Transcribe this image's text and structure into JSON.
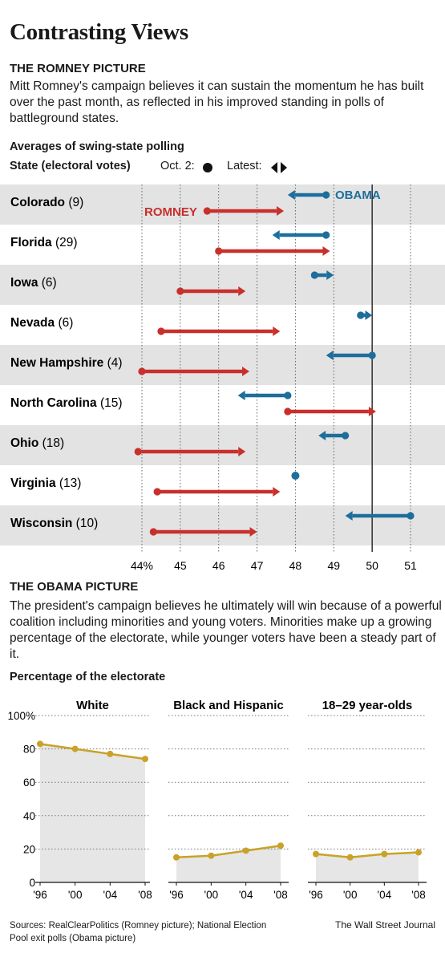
{
  "title": "Contrasting Views",
  "romney": {
    "heading": "THE ROMNEY PICTURE",
    "description": "Mitt Romney's campaign believes it can sustain the momentum he has built over the past month, as reflected in his improved standing in polls of battleground states.",
    "subheading": "Averages of swing-state polling",
    "state_header": "State (electoral votes)",
    "legend_oct2": "Oct. 2:",
    "legend_latest": "Latest:",
    "obama_label": "OBAMA",
    "romney_label": "ROMNEY"
  },
  "obama": {
    "heading": "THE OBAMA PICTURE",
    "description": "The president's campaign believes he ultimately will win because of a powerful coalition including minorities and young voters. Minorities make up a growing percentage of the electorate, while younger voters have been a steady part of it.",
    "subheading": "Percentage of the electorate"
  },
  "sources": "Sources: RealClearPolitics (Romney picture); National Election Pool exit polls (Obama picture)",
  "credit": "The Wall Street Journal",
  "colors": {
    "obama": "#1d6e9c",
    "romney": "#c8302c",
    "line": "#c9a227",
    "band": "#e3e3e3",
    "area": "#e6e6e6"
  },
  "chart_data": [
    {
      "type": "dumbbell",
      "xlim": [
        44,
        51
      ],
      "x_ticks": [
        44,
        45,
        46,
        47,
        48,
        49,
        50,
        51
      ],
      "x_tick_labels": [
        "44%",
        "45",
        "46",
        "47",
        "48",
        "49",
        "50",
        "51"
      ],
      "reference_line": 50,
      "states": [
        {
          "name": "Colorado",
          "ev": "(9)",
          "obama_oct2": 48.8,
          "obama_latest": 47.8,
          "romney_oct2": 45.7,
          "romney_latest": 47.7
        },
        {
          "name": "Florida",
          "ev": "(29)",
          "obama_oct2": 48.8,
          "obama_latest": 47.4,
          "romney_oct2": 46.0,
          "romney_latest": 48.9
        },
        {
          "name": "Iowa",
          "ev": "(6)",
          "obama_oct2": 48.5,
          "obama_latest": 49.0,
          "romney_oct2": 45.0,
          "romney_latest": 46.7
        },
        {
          "name": "Nevada",
          "ev": "(6)",
          "obama_oct2": 49.7,
          "obama_latest": 50.0,
          "romney_oct2": 44.5,
          "romney_latest": 47.6
        },
        {
          "name": "New Hampshire",
          "ev": "(4)",
          "obama_oct2": 50.0,
          "obama_latest": 48.8,
          "romney_oct2": 44.0,
          "romney_latest": 46.8
        },
        {
          "name": "North Carolina",
          "ev": "(15)",
          "obama_oct2": 47.8,
          "obama_latest": 46.5,
          "romney_oct2": 47.8,
          "romney_latest": 50.1
        },
        {
          "name": "Ohio",
          "ev": "(18)",
          "obama_oct2": 49.3,
          "obama_latest": 48.6,
          "romney_oct2": 43.9,
          "romney_latest": 46.7
        },
        {
          "name": "Virginia",
          "ev": "(13)",
          "obama_oct2": 48.0,
          "obama_latest": 48.0,
          "romney_oct2": 44.4,
          "romney_latest": 47.6
        },
        {
          "name": "Wisconsin",
          "ev": "(10)",
          "obama_oct2": 51.0,
          "obama_latest": 49.3,
          "romney_oct2": 44.3,
          "romney_latest": 47.0
        }
      ]
    },
    {
      "type": "area",
      "ylim": [
        0,
        100
      ],
      "y_ticks": [
        0,
        20,
        40,
        60,
        80,
        100
      ],
      "y_tick_labels": [
        "0",
        "20",
        "40",
        "60",
        "80",
        "100%"
      ],
      "categories": [
        "'96",
        "'00",
        "'04",
        "'08"
      ],
      "panels": [
        {
          "title": "White",
          "values": [
            83,
            80,
            77,
            74
          ]
        },
        {
          "title": "Black and Hispanic",
          "values": [
            15,
            16,
            19,
            22
          ]
        },
        {
          "title": "18–29 year-olds",
          "values": [
            17,
            15,
            17,
            18
          ]
        }
      ]
    }
  ]
}
